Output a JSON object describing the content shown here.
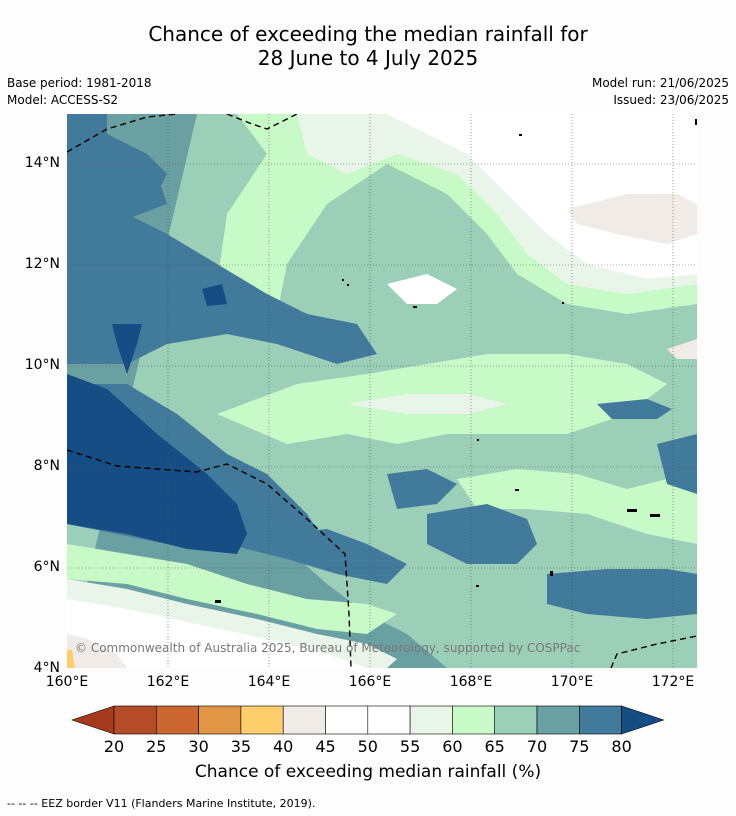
{
  "header": {
    "title_line1": "Chance of exceeding the median rainfall for",
    "title_line2": "28 June to 4 July 2025",
    "base_period": "Base period: 1981-2018",
    "model": "Model: ACCESS-S2",
    "model_run": "Model run: 21/06/2025",
    "issued": "Issued: 23/06/2025"
  },
  "map": {
    "lat_labels": [
      "14°N",
      "12°N",
      "10°N",
      "8°N",
      "6°N",
      "4°N"
    ],
    "lon_labels": [
      "160°E",
      "162°E",
      "164°E",
      "166°E",
      "168°E",
      "170°E",
      "172°E"
    ],
    "copyright": "© Commonwealth of Australia 2025, Bureau of Meteorology, supported by COSPPac",
    "region": "160°E–172.5°E, 4°N–15°N"
  },
  "colorbar": {
    "title": "Chance of exceeding median rainfall (%)",
    "ticks": [
      "20",
      "25",
      "30",
      "35",
      "40",
      "45",
      "50",
      "55",
      "60",
      "65",
      "70",
      "75",
      "80"
    ],
    "colors": [
      "#a63a1f",
      "#b44d27",
      "#cb6632",
      "#e29545",
      "#fbce6b",
      "#f0ebe6",
      "#ffffff",
      "#ffffff",
      "#e9f5e8",
      "#c7fac7",
      "#9ccfb8",
      "#6ba0a3",
      "#417a9a",
      "#164d85"
    ]
  },
  "footer": {
    "eez_note": "--  --  -- EEZ border V11 (Flanders Marine Institute, 2019)."
  }
}
